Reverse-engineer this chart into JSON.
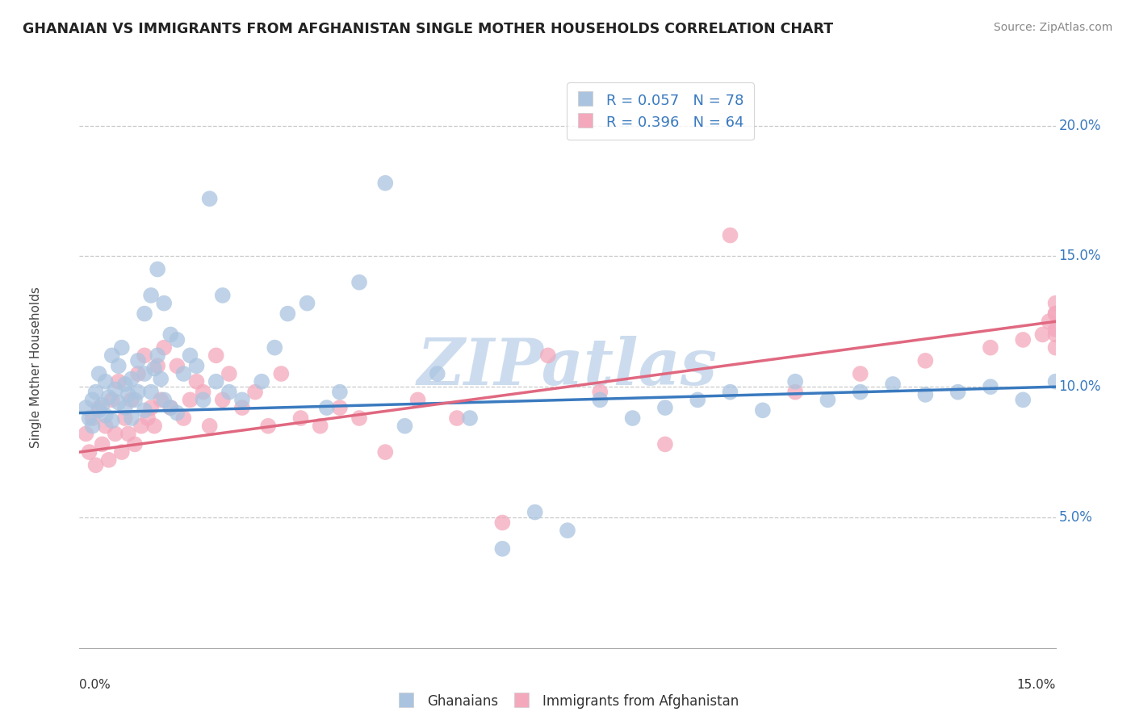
{
  "title": "GHANAIAN VS IMMIGRANTS FROM AFGHANISTAN SINGLE MOTHER HOUSEHOLDS CORRELATION CHART",
  "source": "Source: ZipAtlas.com",
  "ylabel": "Single Mother Households",
  "xlim": [
    0.0,
    15.0
  ],
  "ylim": [
    0.0,
    21.5
  ],
  "yticks": [
    5.0,
    10.0,
    15.0,
    20.0
  ],
  "ytick_labels": [
    "5.0%",
    "10.0%",
    "15.0%",
    "20.0%"
  ],
  "legend_r1": "R = 0.057",
  "legend_n1": "N = 78",
  "legend_r2": "R = 0.396",
  "legend_n2": "N = 64",
  "color_blue": "#aac4e0",
  "color_pink": "#f4a8bc",
  "line_color_blue": "#3a7abf",
  "line_color_pink": "#e06880",
  "watermark": "ZIPatlas",
  "watermark_color": "#ccdcee",
  "background_color": "#ffffff",
  "blue_line_x0": 0.0,
  "blue_line_y0": 9.0,
  "blue_line_x1": 15.0,
  "blue_line_y1": 10.0,
  "pink_line_x0": 0.0,
  "pink_line_y0": 7.5,
  "pink_line_x1": 15.0,
  "pink_line_y1": 12.5,
  "ghanaian_x": [
    0.1,
    0.15,
    0.2,
    0.2,
    0.25,
    0.3,
    0.3,
    0.35,
    0.4,
    0.4,
    0.45,
    0.5,
    0.5,
    0.55,
    0.6,
    0.6,
    0.65,
    0.7,
    0.7,
    0.75,
    0.8,
    0.8,
    0.85,
    0.9,
    0.9,
    1.0,
    1.0,
    1.0,
    1.1,
    1.1,
    1.15,
    1.2,
    1.2,
    1.25,
    1.3,
    1.3,
    1.4,
    1.4,
    1.5,
    1.5,
    1.6,
    1.7,
    1.8,
    1.9,
    2.0,
    2.1,
    2.2,
    2.3,
    2.5,
    2.8,
    3.0,
    3.2,
    3.5,
    3.8,
    4.0,
    4.3,
    4.7,
    5.0,
    5.5,
    6.0,
    6.5,
    7.0,
    7.5,
    8.0,
    8.5,
    9.0,
    9.5,
    10.0,
    10.5,
    11.0,
    11.5,
    12.0,
    12.5,
    13.0,
    13.5,
    14.0,
    14.5,
    15.0
  ],
  "ghanaian_y": [
    9.2,
    8.8,
    9.5,
    8.5,
    9.8,
    9.1,
    10.5,
    9.3,
    8.9,
    10.2,
    9.6,
    11.2,
    8.7,
    9.9,
    10.8,
    9.4,
    11.5,
    9.2,
    10.1,
    9.7,
    10.3,
    8.8,
    9.5,
    11.0,
    9.8,
    12.8,
    10.5,
    9.1,
    13.5,
    9.8,
    10.7,
    14.5,
    11.2,
    10.3,
    13.2,
    9.5,
    12.0,
    9.2,
    11.8,
    9.0,
    10.5,
    11.2,
    10.8,
    9.5,
    17.2,
    10.2,
    13.5,
    9.8,
    9.5,
    10.2,
    11.5,
    12.8,
    13.2,
    9.2,
    9.8,
    14.0,
    17.8,
    8.5,
    10.5,
    8.8,
    3.8,
    5.2,
    4.5,
    9.5,
    8.8,
    9.2,
    9.5,
    9.8,
    9.1,
    10.2,
    9.5,
    9.8,
    10.1,
    9.7,
    9.8,
    10.0,
    9.5,
    10.2
  ],
  "afghan_x": [
    0.1,
    0.15,
    0.2,
    0.25,
    0.3,
    0.35,
    0.4,
    0.45,
    0.5,
    0.55,
    0.6,
    0.65,
    0.7,
    0.75,
    0.8,
    0.85,
    0.9,
    0.95,
    1.0,
    1.05,
    1.1,
    1.15,
    1.2,
    1.25,
    1.3,
    1.4,
    1.5,
    1.6,
    1.7,
    1.8,
    1.9,
    2.0,
    2.1,
    2.2,
    2.3,
    2.5,
    2.7,
    2.9,
    3.1,
    3.4,
    3.7,
    4.0,
    4.3,
    4.7,
    5.2,
    5.8,
    6.5,
    7.2,
    8.0,
    9.0,
    10.0,
    11.0,
    12.0,
    13.0,
    14.0,
    14.5,
    14.8,
    14.9,
    15.0,
    15.0,
    15.0,
    15.0,
    15.0,
    15.0
  ],
  "afghan_y": [
    8.2,
    7.5,
    8.8,
    7.0,
    9.2,
    7.8,
    8.5,
    7.2,
    9.5,
    8.2,
    10.2,
    7.5,
    8.8,
    8.2,
    9.5,
    7.8,
    10.5,
    8.5,
    11.2,
    8.8,
    9.2,
    8.5,
    10.8,
    9.5,
    11.5,
    9.2,
    10.8,
    8.8,
    9.5,
    10.2,
    9.8,
    8.5,
    11.2,
    9.5,
    10.5,
    9.2,
    9.8,
    8.5,
    10.5,
    8.8,
    8.5,
    9.2,
    8.8,
    7.5,
    9.5,
    8.8,
    4.8,
    11.2,
    9.8,
    7.8,
    15.8,
    9.8,
    10.5,
    11.0,
    11.5,
    11.8,
    12.0,
    12.5,
    12.8,
    12.2,
    11.5,
    12.0,
    12.8,
    13.2
  ]
}
